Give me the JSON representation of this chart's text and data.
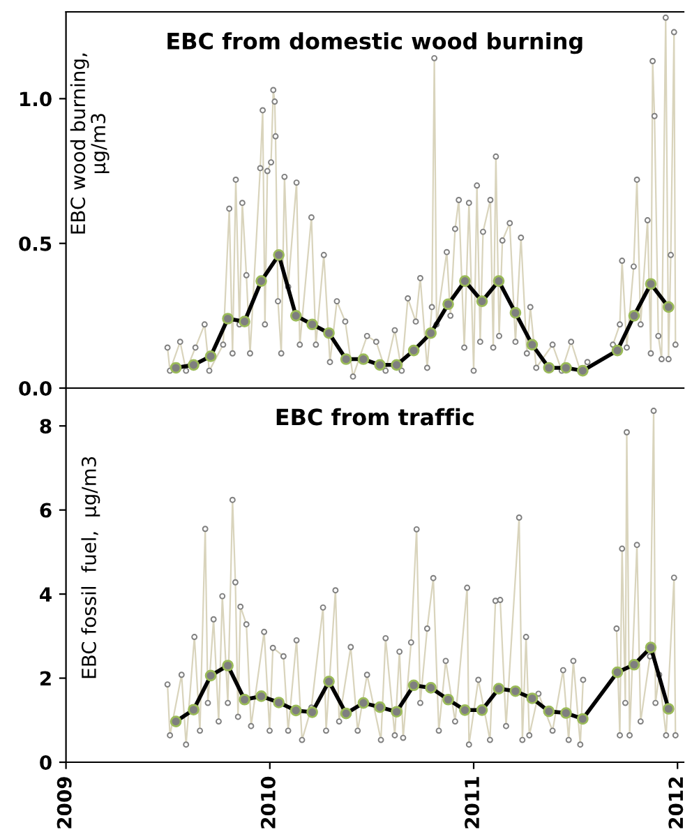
{
  "chart_data": [
    {
      "type": "line",
      "title": "EBC from domestic wood burning",
      "ylabel": "EBC wood burning,\nµg/m3",
      "xlim": [
        2009,
        2012.03
      ],
      "xticks": [
        2009,
        2010,
        2011,
        2012
      ],
      "ylim": [
        0,
        1.3
      ],
      "yticks": [
        {
          "value": 0,
          "label": "0.0"
        },
        {
          "value": 0.5,
          "label": "0.5"
        },
        {
          "value": 1.0,
          "label": "1.0"
        }
      ],
      "tick_labels": "y",
      "grid": false,
      "legend": false,
      "series": [
        {
          "color": "#d9d4bc",
          "marker": "circle",
          "x": [
            2009.498,
            2009.51,
            2009.56,
            2009.589,
            2009.635,
            2009.68,
            2009.703,
            2009.771,
            2009.801,
            2009.817,
            2009.833,
            2009.851,
            2009.865,
            2009.885,
            2009.903,
            2009.953,
            2009.965,
            2009.976,
            2009.988,
            2010.006,
            2010.017,
            2010.024,
            2010.028,
            2010.04,
            2010.056,
            2010.072,
            2010.09,
            2010.131,
            2010.147,
            2010.204,
            2010.226,
            2010.265,
            2010.295,
            2010.329,
            2010.37,
            2010.408,
            2010.477,
            2010.522,
            2010.568,
            2010.613,
            2010.647,
            2010.677,
            2010.716,
            2010.738,
            2010.772,
            2010.795,
            2010.807,
            2010.818,
            2010.868,
            2010.886,
            2010.909,
            2010.927,
            2010.954,
            2010.977,
            2011.0,
            2011.016,
            2011.032,
            2011.046,
            2011.082,
            2011.096,
            2011.109,
            2011.125,
            2011.141,
            2011.177,
            2011.205,
            2011.232,
            2011.261,
            2011.278,
            2011.307,
            2011.387,
            2011.432,
            2011.478,
            2011.523,
            2011.558,
            2011.62,
            2011.683,
            2011.717,
            2011.728,
            2011.751,
            2011.785,
            2011.801,
            2011.819,
            2011.853,
            2011.869,
            2011.878,
            2011.887,
            2011.906,
            2011.922,
            2011.942,
            2011.956,
            2011.967,
            2011.983,
            2011.99
          ],
          "values": [
            0.14,
            0.06,
            0.16,
            0.06,
            0.14,
            0.22,
            0.06,
            0.15,
            0.62,
            0.12,
            0.72,
            0.22,
            0.64,
            0.39,
            0.12,
            0.76,
            0.96,
            0.22,
            0.75,
            0.78,
            1.03,
            0.99,
            0.87,
            0.3,
            0.12,
            0.73,
            0.35,
            0.71,
            0.15,
            0.59,
            0.15,
            0.46,
            0.09,
            0.3,
            0.23,
            0.04,
            0.18,
            0.16,
            0.06,
            0.2,
            0.06,
            0.31,
            0.23,
            0.38,
            0.07,
            0.28,
            1.14,
            0.22,
            0.47,
            0.25,
            0.55,
            0.65,
            0.14,
            0.64,
            0.06,
            0.7,
            0.16,
            0.54,
            0.65,
            0.14,
            0.8,
            0.18,
            0.51,
            0.57,
            0.16,
            0.52,
            0.12,
            0.28,
            0.07,
            0.15,
            0.06,
            0.16,
            0.06,
            0.09,
            null,
            0.15,
            0.22,
            0.44,
            0.14,
            0.42,
            0.72,
            0.22,
            0.58,
            0.12,
            1.13,
            0.94,
            0.18,
            0.1,
            1.28,
            0.1,
            0.46,
            1.23,
            0.15
          ]
        },
        {
          "color": "#000000",
          "marker": "circle",
          "x": [
            2009.539,
            2009.626,
            2009.71,
            2009.794,
            2009.876,
            2009.958,
            2010.044,
            2010.128,
            2010.208,
            2010.29,
            2010.374,
            2010.459,
            2010.54,
            2010.622,
            2010.706,
            2010.79,
            2010.875,
            2010.957,
            2011.041,
            2011.123,
            2011.205,
            2011.287,
            2011.369,
            2011.453,
            2011.535,
            2011.705,
            2011.787,
            2011.869,
            2011.956
          ],
          "values": [
            0.07,
            0.08,
            0.11,
            0.24,
            0.23,
            0.37,
            0.46,
            0.25,
            0.22,
            0.19,
            0.1,
            0.1,
            0.08,
            0.08,
            0.13,
            0.19,
            0.29,
            0.37,
            0.3,
            0.37,
            0.26,
            0.15,
            0.07,
            0.07,
            0.06,
            0.13,
            0.25,
            0.36,
            0.28
          ]
        }
      ]
    },
    {
      "type": "line",
      "title": "EBC from traffic",
      "ylabel": "EBC fossil  fuel,  µg/m3",
      "xlim": [
        2009,
        2012.03
      ],
      "xticks": [
        2009,
        2010,
        2011,
        2012
      ],
      "ylim": [
        0,
        8.9
      ],
      "yticks": [
        0,
        2,
        4,
        6,
        8
      ],
      "grid": false,
      "legend": false,
      "series": [
        {
          "color": "#d9d4bc",
          "marker": "circle",
          "x": [
            2009.498,
            2009.51,
            2009.567,
            2009.589,
            2009.63,
            2009.657,
            2009.683,
            2009.696,
            2009.724,
            2009.749,
            2009.767,
            2009.794,
            2009.817,
            2009.831,
            2009.844,
            2009.856,
            2009.885,
            2009.908,
            2009.972,
            2009.999,
            2010.015,
            2010.067,
            2010.09,
            2010.131,
            2010.158,
            2010.204,
            2010.261,
            2010.276,
            2010.322,
            2010.34,
            2010.397,
            2010.431,
            2010.477,
            2010.545,
            2010.568,
            2010.613,
            2010.636,
            2010.654,
            2010.693,
            2010.72,
            2010.738,
            2010.772,
            2010.802,
            2010.829,
            2010.863,
            2010.909,
            2010.968,
            2010.977,
            2011.023,
            2011.08,
            2011.107,
            2011.13,
            2011.159,
            2011.223,
            2011.239,
            2011.257,
            2011.273,
            2011.318,
            2011.387,
            2011.439,
            2011.466,
            2011.489,
            2011.523,
            2011.537,
            2011.62,
            2011.701,
            2011.717,
            2011.728,
            2011.744,
            2011.751,
            2011.765,
            2011.801,
            2011.819,
            2011.865,
            2011.883,
            2011.892,
            2011.91,
            2011.944,
            2011.983,
            2011.99
          ],
          "values": [
            1.85,
            0.64,
            2.08,
            0.42,
            2.98,
            0.75,
            5.55,
            1.41,
            3.4,
            0.97,
            3.95,
            1.41,
            6.24,
            4.28,
            1.08,
            3.7,
            3.28,
            0.86,
            3.1,
            0.75,
            2.72,
            2.52,
            0.75,
            2.9,
            0.53,
            1.3,
            3.68,
            0.75,
            4.09,
            0.97,
            2.74,
            0.75,
            2.08,
            0.53,
            2.95,
            0.64,
            2.63,
            0.58,
            2.85,
            5.54,
            1.41,
            3.18,
            4.38,
            0.75,
            2.41,
            0.97,
            4.15,
            0.42,
            1.96,
            0.53,
            3.84,
            3.86,
            0.86,
            5.82,
            0.53,
            2.98,
            0.64,
            1.63,
            0.75,
            2.19,
            0.53,
            2.41,
            0.42,
            1.96,
            null,
            3.18,
            0.64,
            5.08,
            1.41,
            7.85,
            0.64,
            5.17,
            0.97,
            2.52,
            8.36,
            1.41,
            2.08,
            0.64,
            4.39,
            0.64
          ]
        },
        {
          "color": "#000000",
          "marker": "circle",
          "x": [
            2009.539,
            2009.626,
            2009.71,
            2009.794,
            2009.876,
            2009.958,
            2010.044,
            2010.128,
            2010.208,
            2010.29,
            2010.374,
            2010.459,
            2010.54,
            2010.622,
            2010.706,
            2010.79,
            2010.875,
            2010.957,
            2011.041,
            2011.123,
            2011.205,
            2011.287,
            2011.369,
            2011.453,
            2011.535,
            2011.705,
            2011.787,
            2011.869,
            2011.956
          ],
          "values": [
            0.97,
            1.25,
            2.06,
            2.3,
            1.49,
            1.57,
            1.42,
            1.23,
            1.19,
            1.92,
            1.16,
            1.41,
            1.31,
            1.2,
            1.83,
            1.77,
            1.49,
            1.24,
            1.24,
            1.75,
            1.69,
            1.52,
            1.21,
            1.17,
            1.03,
            2.14,
            2.32,
            2.73,
            1.27
          ]
        }
      ]
    }
  ]
}
